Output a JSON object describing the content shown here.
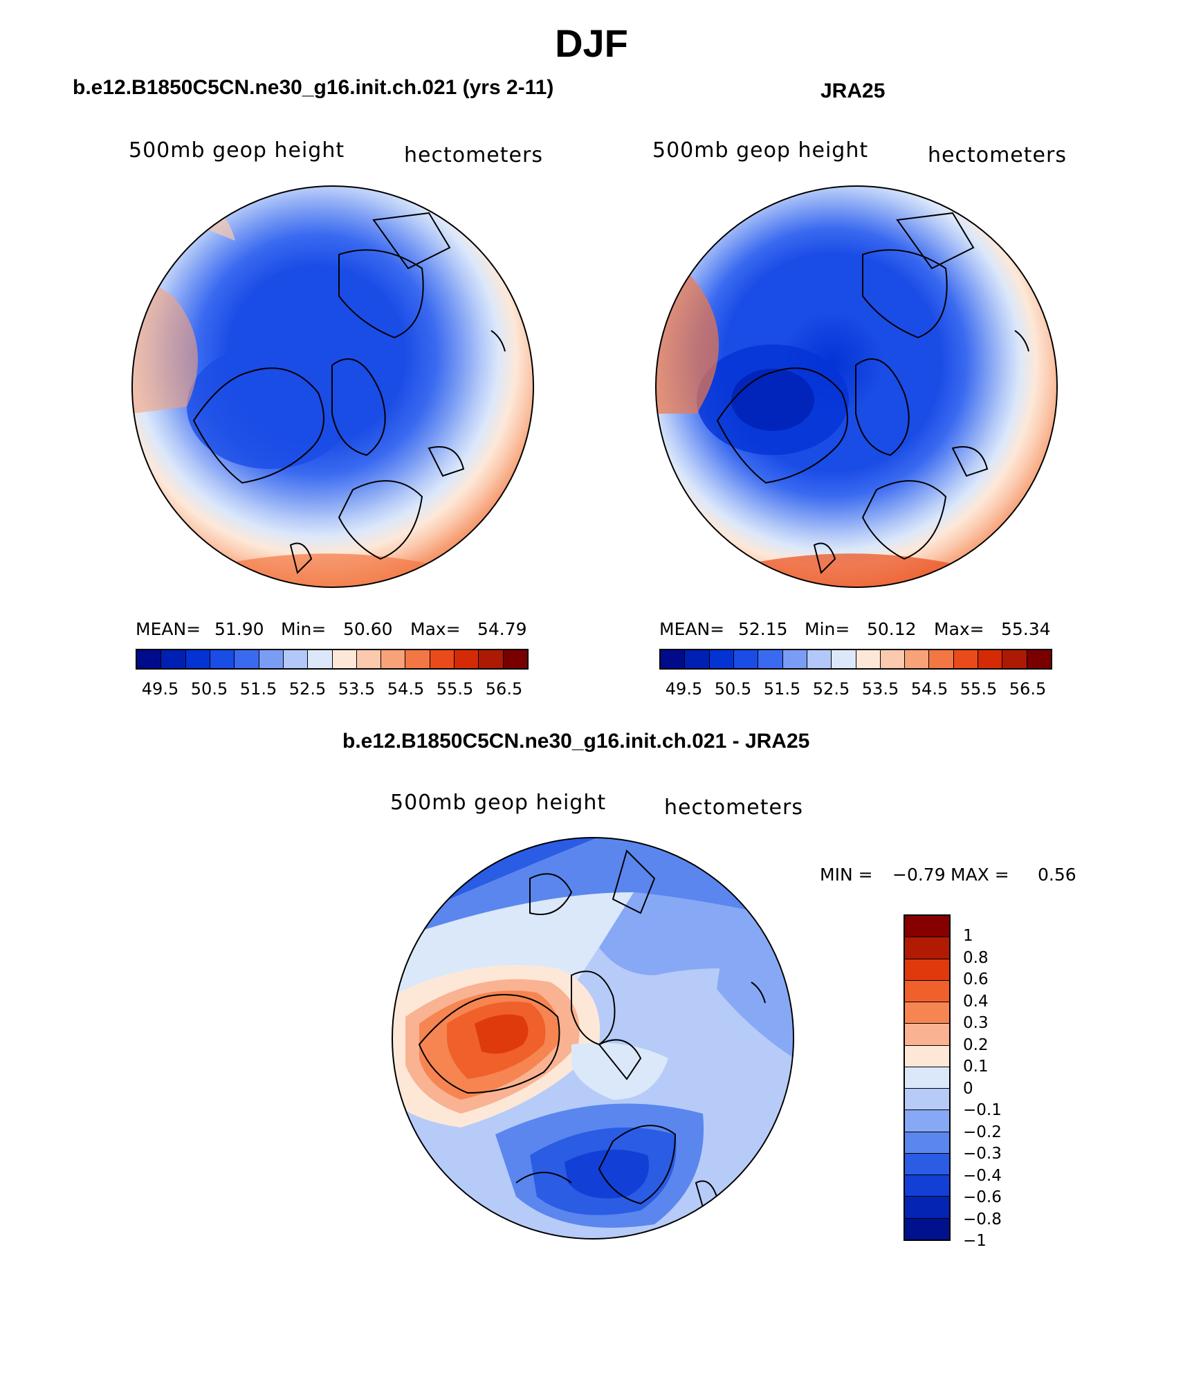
{
  "title": "DJF",
  "panels": [
    {
      "title": "b.e12.B1850C5CN.ne30_g16.init.ch.021 (yrs 2-11)",
      "left_label": "500mb geop height",
      "right_label": "hectometers",
      "stats": {
        "mean_label": "MEAN=",
        "mean": "51.90",
        "min_label": "Min=",
        "min": "50.60",
        "max_label": "Max=",
        "max": "54.79"
      }
    },
    {
      "title": "JRA25",
      "left_label": "500mb geop height",
      "right_label": "hectometers",
      "stats": {
        "mean_label": "MEAN=",
        "mean": "52.15",
        "min_label": "Min=",
        "min": "50.12",
        "max_label": "Max=",
        "max": "55.34"
      }
    },
    {
      "title": "b.e12.B1850C5CN.ne30_g16.init.ch.021 - JRA25",
      "left_label": "500mb geop height",
      "right_label": "hectometers",
      "stats": {
        "min_label": "MIN =",
        "min": "−0.79",
        "max_label": "MAX =",
        "max": "0.56"
      }
    }
  ],
  "colorbar_top": {
    "colors": [
      "#000b8c",
      "#0020b4",
      "#0433d4",
      "#1a4ce6",
      "#3a6af0",
      "#7a9cf4",
      "#b2c8f8",
      "#dce8fa",
      "#fde8d8",
      "#fbc9ad",
      "#f7a279",
      "#f27745",
      "#ea4b1a",
      "#d42a06",
      "#ac1a04",
      "#7a0000"
    ],
    "labels": [
      "49.5",
      "50.5",
      "51.5",
      "52.5",
      "53.5",
      "54.5",
      "55.5",
      "56.5"
    ]
  },
  "colorbar_diff": {
    "colors": [
      "#860000",
      "#b21a04",
      "#de3a0c",
      "#f0602a",
      "#f68552",
      "#f9b392",
      "#fde8d8",
      "#dbe8fa",
      "#b6cbf8",
      "#87a8f4",
      "#5a86ee",
      "#2a5ce4",
      "#123fd6",
      "#0424b4",
      "#00118e"
    ],
    "labels": [
      "1",
      "0.8",
      "0.6",
      "0.4",
      "0.3",
      "0.2",
      "0.1",
      "0",
      "−0.1",
      "−0.2",
      "−0.3",
      "−0.4",
      "−0.6",
      "−0.8",
      "−1"
    ]
  }
}
